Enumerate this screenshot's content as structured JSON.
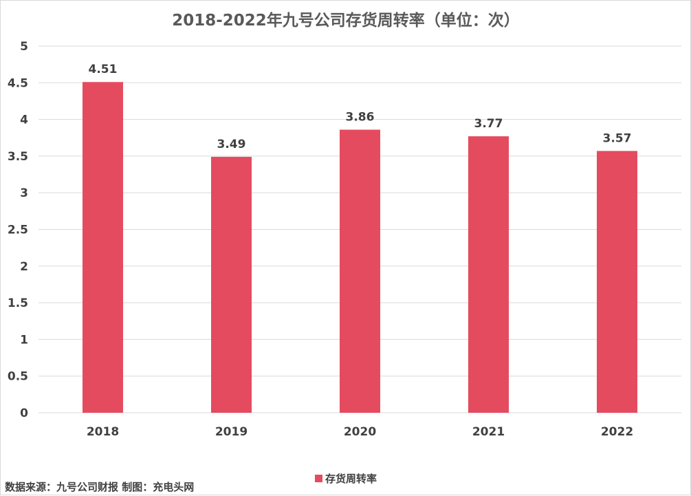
{
  "chart_data": {
    "type": "bar",
    "title": "2018-2022年九号公司存货周转率（单位：次）",
    "categories": [
      "2018",
      "2019",
      "2020",
      "2021",
      "2022"
    ],
    "series": [
      {
        "name": "存货周转率",
        "values": [
          4.51,
          3.49,
          3.86,
          3.77,
          3.57
        ],
        "color": "#e54b5e"
      }
    ],
    "data_labels": [
      "4.51",
      "3.49",
      "3.86",
      "3.77",
      "3.57"
    ],
    "y_ticks": [
      "0",
      "0.5",
      "1",
      "1.5",
      "2",
      "2.5",
      "3",
      "3.5",
      "4",
      "4.5",
      "5"
    ],
    "ylim": [
      0,
      5
    ],
    "grid": true,
    "legend_position": "bottom-center",
    "gridline_color": "#d9d9d9"
  },
  "source_note": "数据来源：九号公司财报 制图：充电头网"
}
